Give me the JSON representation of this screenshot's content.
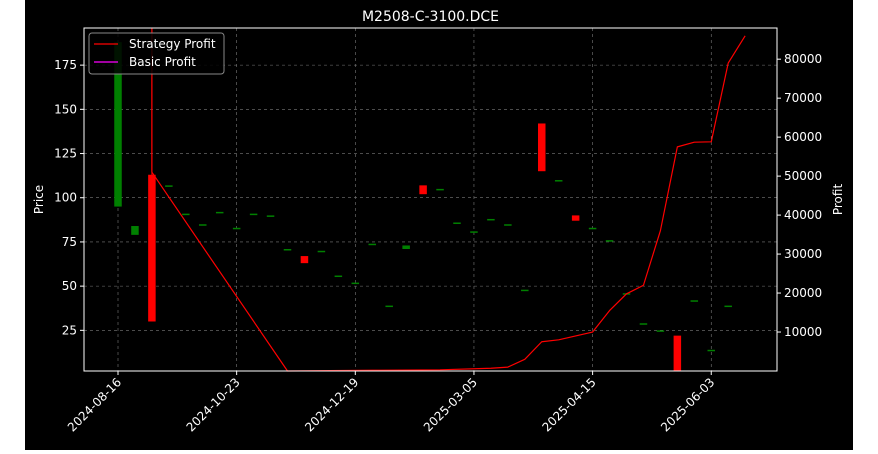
{
  "chart_data": {
    "type": "candlestick",
    "title": "M2508-C-3100.DCE",
    "ylabel_left": "Price",
    "ylabel_right": "Profit",
    "xlabel": "",
    "grid": true,
    "legend_placement": "top-left",
    "ylim_left": [
      2,
      196
    ],
    "ylim_right": [
      0,
      88000
    ],
    "y_ticks_left": [
      25,
      50,
      75,
      100,
      125,
      150,
      175
    ],
    "y_ticks_right": [
      10000,
      20000,
      30000,
      40000,
      50000,
      60000,
      70000,
      80000
    ],
    "x_tick_labels": [
      "2024-08-16",
      "2024-10-23",
      "2024-12-19",
      "2025-03-05",
      "2025-04-15",
      "2025-06-03"
    ],
    "colors": {
      "up": "#008000",
      "down": "#ff0000",
      "strategy": "#ff0000",
      "basic": "#ff00ff"
    },
    "legend": [
      {
        "name": "Strategy Profit",
        "color": "#ff0000"
      },
      {
        "name": "Basic Profit",
        "color": "#ff00ff"
      }
    ],
    "candles": [
      {
        "i": 0,
        "open": 95,
        "close": 188,
        "high": 188,
        "low": 95
      },
      {
        "i": 1,
        "open": 79,
        "close": 84,
        "high": 84,
        "low": 79
      },
      {
        "i": 2,
        "open": 113,
        "close": 30,
        "high": 168,
        "low": 30
      },
      {
        "i": 3,
        "open": 107,
        "close": 107,
        "high": 107,
        "low": 107
      },
      {
        "i": 4,
        "open": 91,
        "close": 91,
        "high": 91,
        "low": 91
      },
      {
        "i": 5,
        "open": 85,
        "close": 85,
        "high": 85,
        "low": 85
      },
      {
        "i": 6,
        "open": 92,
        "close": 92,
        "high": 92,
        "low": 92
      },
      {
        "i": 7,
        "open": 83,
        "close": 83,
        "high": 83,
        "low": 83
      },
      {
        "i": 8,
        "open": 91,
        "close": 91,
        "high": 91,
        "low": 91
      },
      {
        "i": 9,
        "open": 90,
        "close": 90,
        "high": 90,
        "low": 90
      },
      {
        "i": 10,
        "open": 71,
        "close": 71,
        "high": 71,
        "low": 71
      },
      {
        "i": 11,
        "open": 67,
        "close": 63,
        "high": 67,
        "low": 63
      },
      {
        "i": 12,
        "open": 70,
        "close": 70,
        "high": 70,
        "low": 70
      },
      {
        "i": 13,
        "open": 56,
        "close": 56,
        "high": 56,
        "low": 56
      },
      {
        "i": 14,
        "open": 52,
        "close": 52,
        "high": 52,
        "low": 52
      },
      {
        "i": 15,
        "open": 74,
        "close": 74,
        "high": 74,
        "low": 74
      },
      {
        "i": 16,
        "open": 39,
        "close": 39,
        "high": 39,
        "low": 39
      },
      {
        "i": 17,
        "open": 71,
        "close": 73,
        "high": 73,
        "low": 71
      },
      {
        "i": 18,
        "open": 107,
        "close": 102,
        "high": 107,
        "low": 102
      },
      {
        "i": 19,
        "open": 105,
        "close": 105,
        "high": 105,
        "low": 105
      },
      {
        "i": 20,
        "open": 86,
        "close": 86,
        "high": 86,
        "low": 86
      },
      {
        "i": 21,
        "open": 81,
        "close": 81,
        "high": 81,
        "low": 81
      },
      {
        "i": 22,
        "open": 88,
        "close": 88,
        "high": 88,
        "low": 88
      },
      {
        "i": 23,
        "open": 85,
        "close": 85,
        "high": 85,
        "low": 85
      },
      {
        "i": 24,
        "open": 48,
        "close": 48,
        "high": 48,
        "low": 48
      },
      {
        "i": 25,
        "open": 142,
        "close": 115,
        "high": 142,
        "low": 115
      },
      {
        "i": 26,
        "open": 110,
        "close": 110,
        "high": 110,
        "low": 110
      },
      {
        "i": 27,
        "open": 90,
        "close": 87,
        "high": 90,
        "low": 87
      },
      {
        "i": 28,
        "open": 83,
        "close": 83,
        "high": 83,
        "low": 83
      },
      {
        "i": 29,
        "open": 76,
        "close": 76,
        "high": 76,
        "low": 76
      },
      {
        "i": 30,
        "open": 46,
        "close": 46,
        "high": 46,
        "low": 46
      },
      {
        "i": 31,
        "open": 29,
        "close": 29,
        "high": 29,
        "low": 29
      },
      {
        "i": 32,
        "open": 25,
        "close": 25,
        "high": 25,
        "low": 25
      },
      {
        "i": 33,
        "open": 22,
        "close": 2,
        "high": 22,
        "low": 2
      },
      {
        "i": 34,
        "open": 42,
        "close": 42,
        "high": 42,
        "low": 42
      },
      {
        "i": 35,
        "open": 14,
        "close": 14,
        "high": 14,
        "low": 14
      },
      {
        "i": 36,
        "open": 39,
        "close": 39,
        "high": 39,
        "low": 39
      }
    ],
    "strategy_profit": [
      [
        2,
        88000
      ],
      [
        2,
        51000
      ],
      [
        10,
        0
      ],
      [
        15,
        200
      ],
      [
        19,
        300
      ],
      [
        22,
        700
      ],
      [
        23,
        1000
      ],
      [
        24,
        3000
      ],
      [
        25,
        7500
      ],
      [
        26,
        8000
      ],
      [
        27,
        9000
      ],
      [
        28,
        10000
      ],
      [
        29,
        15500
      ],
      [
        30,
        19800
      ],
      [
        31,
        22000
      ],
      [
        32,
        36000
      ],
      [
        33,
        57500
      ],
      [
        34,
        58700
      ],
      [
        35,
        58800
      ],
      [
        36,
        79000
      ],
      [
        37,
        86000
      ]
    ],
    "basic_profit": []
  }
}
